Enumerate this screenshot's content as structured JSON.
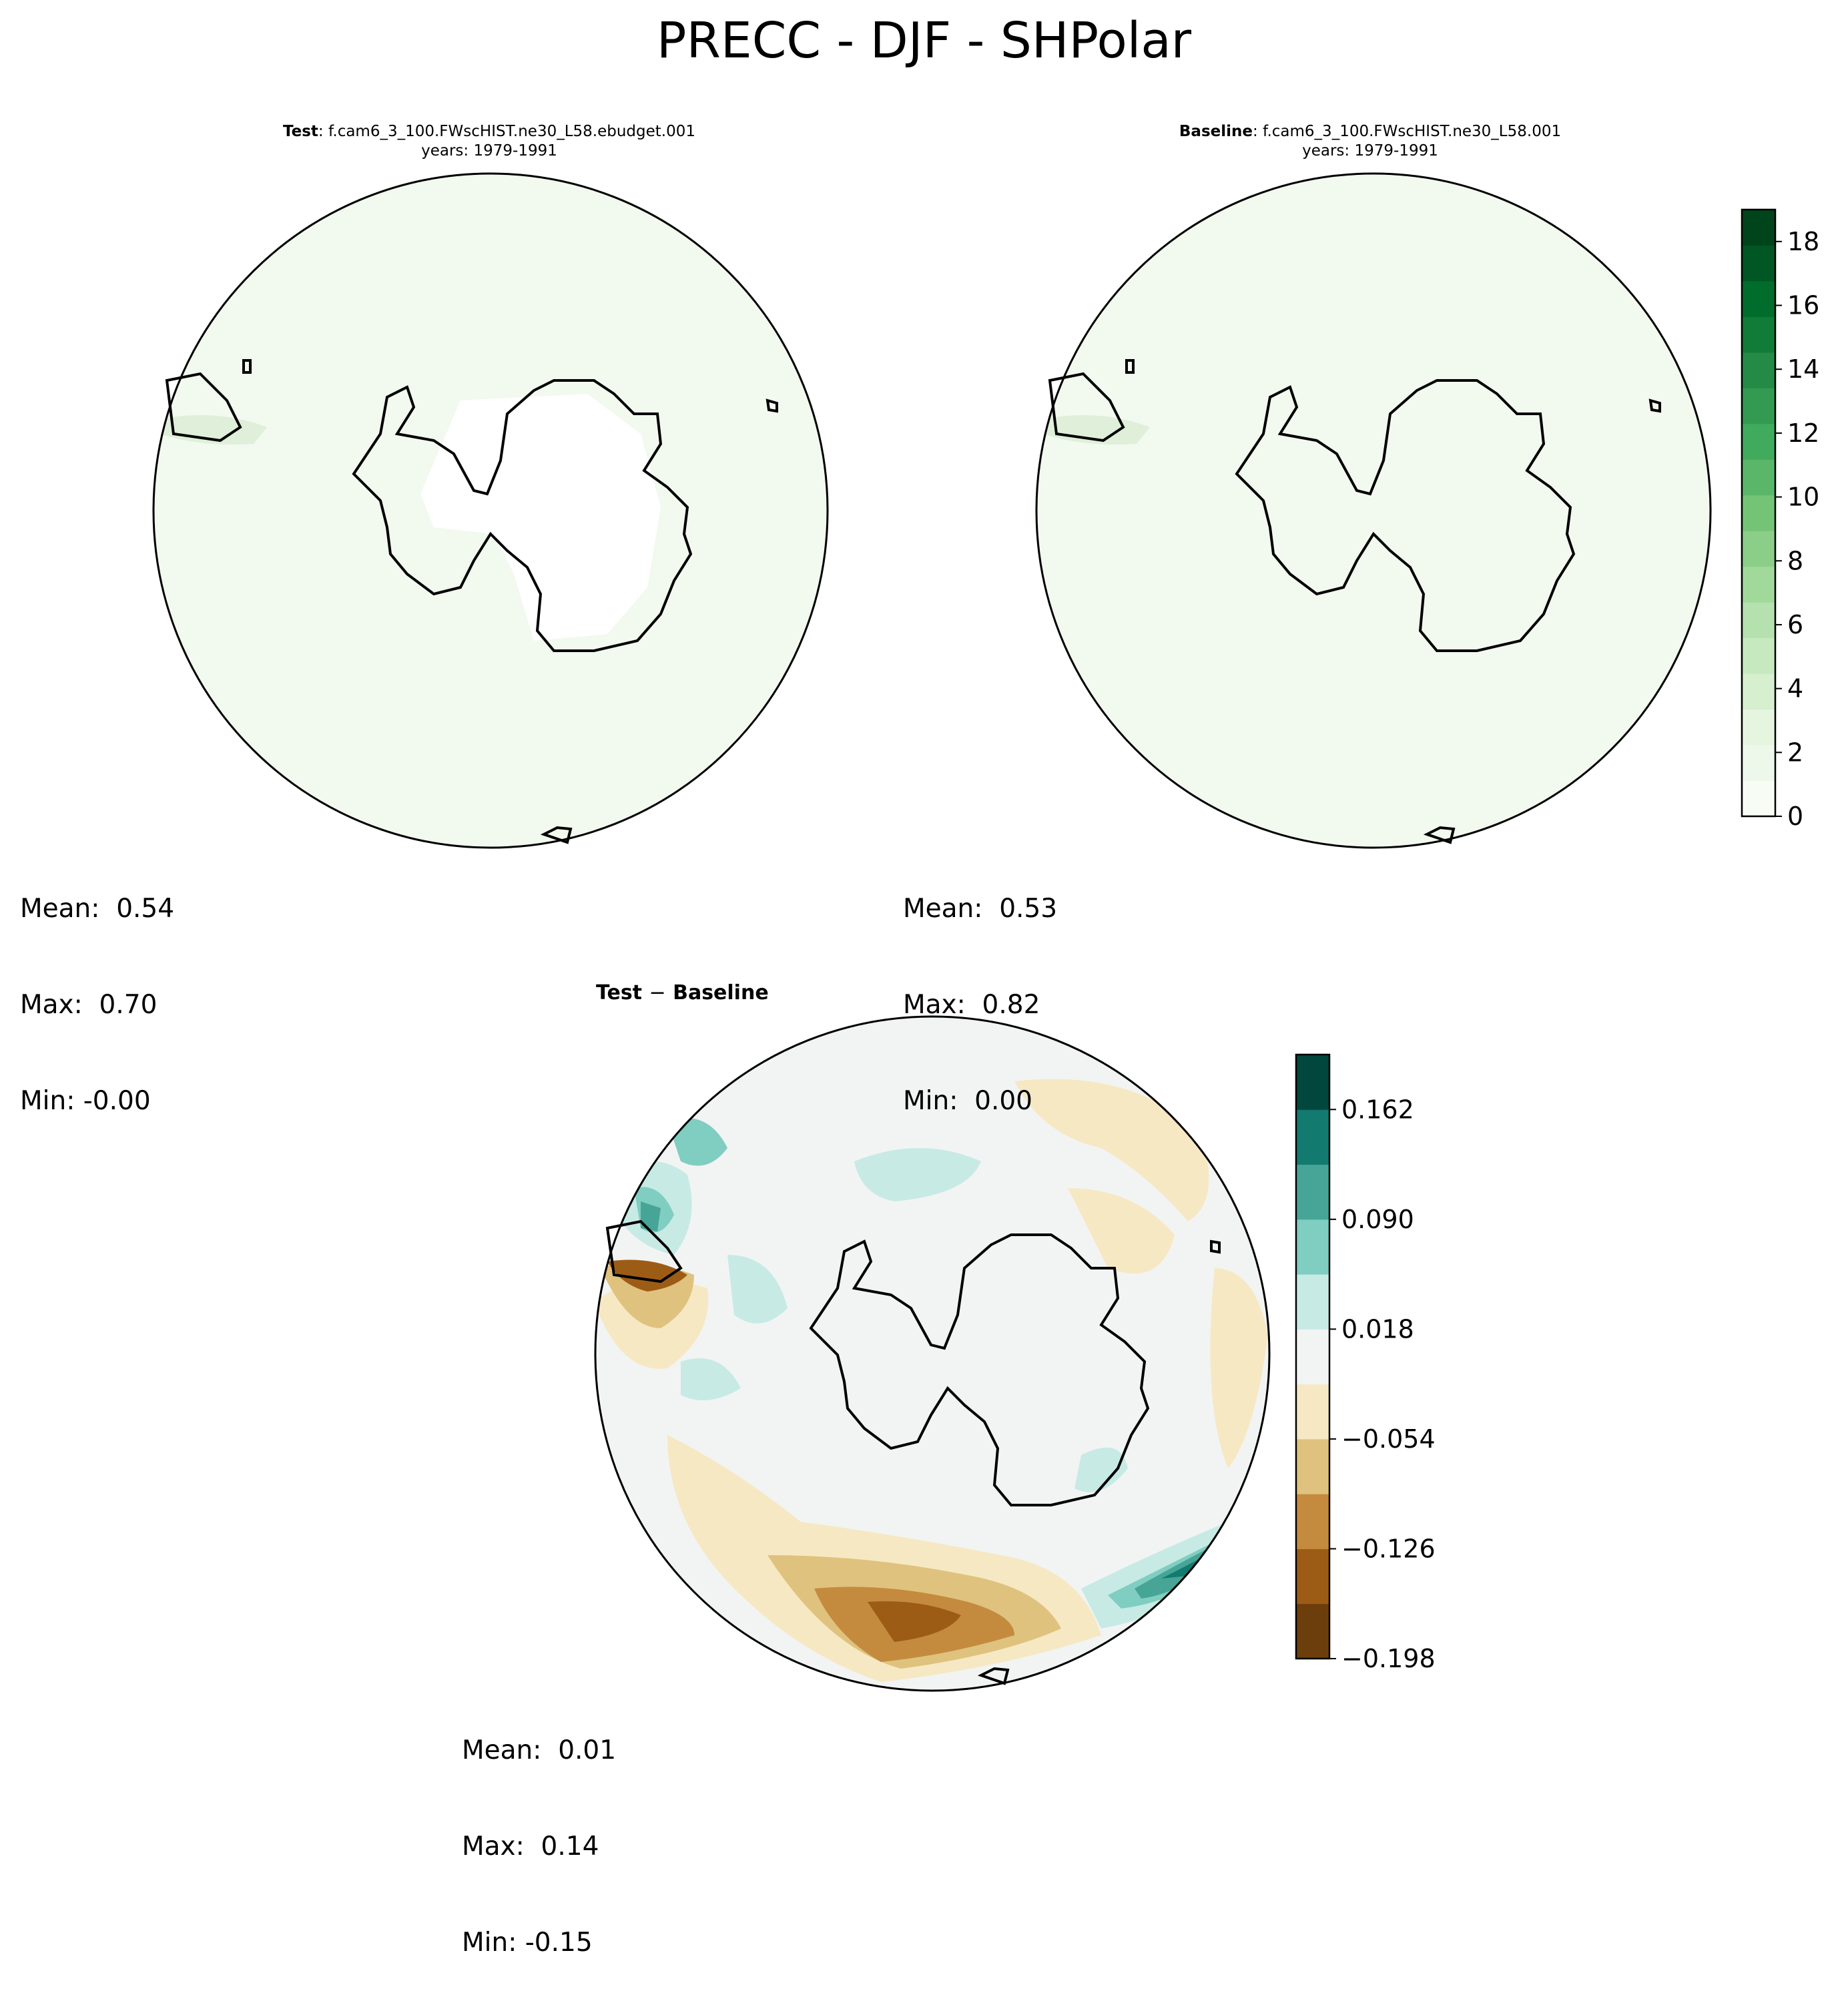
{
  "figure": {
    "title": "PRECC - DJF - SHPolar"
  },
  "panels": [
    {
      "id": "test",
      "label": "Test",
      "sep": ": ",
      "case": "f.cam6_3_100.FWscHIST.ne30_L58.ebudget.001",
      "years": "years: 1979-1991",
      "stats": {
        "mean": "Mean:  0.54",
        "max": "Max:  0.70",
        "min": "Min: -0.00"
      }
    },
    {
      "id": "baseline",
      "label": "Baseline",
      "sep": ": ",
      "case": "f.cam6_3_100.FWscHIST.ne30_L58.001",
      "years": "years: 1979-1991",
      "stats": {
        "mean": "Mean:  0.53",
        "max": "Max:  0.82",
        "min": "Min:  0.00"
      }
    },
    {
      "id": "diff",
      "label_a": "Test",
      "label_op": "−",
      "label_b": "Baseline",
      "stats": {
        "mean": "Mean:  0.01",
        "max": "Max:  0.14",
        "min": "Min: -0.15"
      }
    }
  ],
  "colorbars": {
    "main": {
      "ticks": [
        "0",
        "2",
        "4",
        "6",
        "8",
        "10",
        "12",
        "14",
        "16",
        "18"
      ],
      "range": [
        0,
        19
      ],
      "colors": [
        "#f7fcf5",
        "#eef8ea",
        "#e5f5e0",
        "#d5efcf",
        "#c7e9c0",
        "#b4e1ad",
        "#a1d99b",
        "#8ace88",
        "#74c476",
        "#5ab769",
        "#41ab5d",
        "#329b51",
        "#238b45",
        "#117b38",
        "#006d2c",
        "#005723",
        "#00441b"
      ]
    },
    "diff": {
      "ticks": [
        "0.162",
        "0.090",
        "0.018",
        "−0.054",
        "−0.126",
        "−0.198"
      ],
      "levels": [
        -0.198,
        -0.162,
        -0.126,
        -0.09,
        -0.054,
        -0.018,
        0.018,
        0.054,
        0.09,
        0.126,
        0.162,
        0.198
      ],
      "colors": [
        "#6b3e0b",
        "#9c5c16",
        "#c48b3f",
        "#dfc27d",
        "#f6e8c3",
        "#f2f4f3",
        "#c7eae5",
        "#80cdc1",
        "#46a597",
        "#137a70",
        "#01473d"
      ]
    }
  },
  "chart_data": [
    {
      "type": "heatmap",
      "title": "Test: f.cam6_3_100.FWscHIST.ne30_L58.ebudget.001",
      "subtitle": "years: 1979-1991",
      "projection": "south polar stereographic",
      "colorbar_range": [
        0,
        19
      ],
      "summary": {
        "mean": 0.54,
        "max": 0.7,
        "min": -0.0
      }
    },
    {
      "type": "heatmap",
      "title": "Baseline: f.cam6_3_100.FWscHIST.ne30_L58.001",
      "subtitle": "years: 1979-1991",
      "projection": "south polar stereographic",
      "colorbar_range": [
        0,
        19
      ],
      "summary": {
        "mean": 0.53,
        "max": 0.82,
        "min": 0.0
      }
    },
    {
      "type": "heatmap",
      "title": "Test − Baseline",
      "projection": "south polar stereographic",
      "colorbar_range": [
        -0.198,
        0.198
      ],
      "summary": {
        "mean": 0.01,
        "max": 0.14,
        "min": -0.15
      }
    }
  ]
}
